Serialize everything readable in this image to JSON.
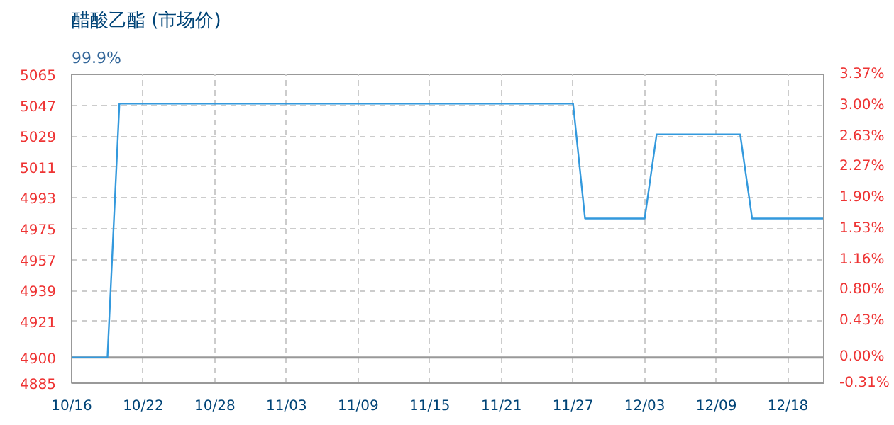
{
  "chart_data": {
    "type": "line",
    "title": "醋酸乙酯 (市场价)",
    "subtitle": "99.9%",
    "categories": [
      "10/16",
      null,
      null,
      null,
      null,
      null,
      "10/22",
      null,
      null,
      null,
      null,
      null,
      "10/28",
      null,
      null,
      null,
      null,
      null,
      "11/03",
      null,
      null,
      null,
      null,
      null,
      "11/09",
      null,
      null,
      null,
      null,
      null,
      "11/15",
      null,
      null,
      null,
      null,
      null,
      "11/21",
      null,
      null,
      null,
      null,
      null,
      "11/27",
      null,
      null,
      null,
      null,
      null,
      "12/03",
      null,
      null,
      null,
      null,
      null,
      "12/09",
      null,
      null,
      null,
      null,
      null,
      "12/18",
      null,
      null,
      null
    ],
    "series": [
      {
        "color": "#3399dd",
        "values": [
          4900,
          4900,
          4900,
          4900,
          5048,
          5048,
          5048,
          5048,
          5048,
          5048,
          5048,
          5048,
          5048,
          5048,
          5048,
          5048,
          5048,
          5048,
          5048,
          5048,
          5048,
          5048,
          5048,
          5048,
          5048,
          5048,
          5048,
          5048,
          5048,
          5048,
          5048,
          5048,
          5048,
          5048,
          5048,
          5048,
          5048,
          5048,
          5048,
          5048,
          5048,
          5048,
          5048,
          4981,
          4981,
          4981,
          4981,
          4981,
          4981,
          5030,
          5030,
          5030,
          5030,
          5030,
          5030,
          5030,
          5030,
          4981,
          4981,
          4981,
          4981,
          4981,
          4981,
          4981
        ]
      }
    ],
    "ylim": [
      4885,
      5065
    ],
    "yticks": [
      4885,
      4900,
      4921,
      4939,
      4957,
      4975,
      4993,
      5011,
      5029,
      5047,
      5065
    ],
    "y2lim": [
      -0.31,
      3.37
    ],
    "y2ticks": [
      {
        "value": -0.31,
        "label": "-0.31%"
      },
      {
        "value": 0,
        "label": "0.00%"
      },
      {
        "value": 0.43,
        "label": "0.43%"
      },
      {
        "value": 0.8,
        "label": "0.80%"
      },
      {
        "value": 1.16,
        "label": "1.16%"
      },
      {
        "value": 1.53,
        "label": "1.53%"
      },
      {
        "value": 1.9,
        "label": "1.90%"
      },
      {
        "value": 2.27,
        "label": "2.27%"
      },
      {
        "value": 2.63,
        "label": "2.63%"
      },
      {
        "value": 3.0,
        "label": "3.00%"
      },
      {
        "value": 3.37,
        "label": "3.37%"
      }
    ],
    "ref_lines": [
      {
        "axis": "y",
        "value": 4900,
        "color": "#999999"
      }
    ],
    "grid": true,
    "marker": "none",
    "line_style": "solid"
  }
}
